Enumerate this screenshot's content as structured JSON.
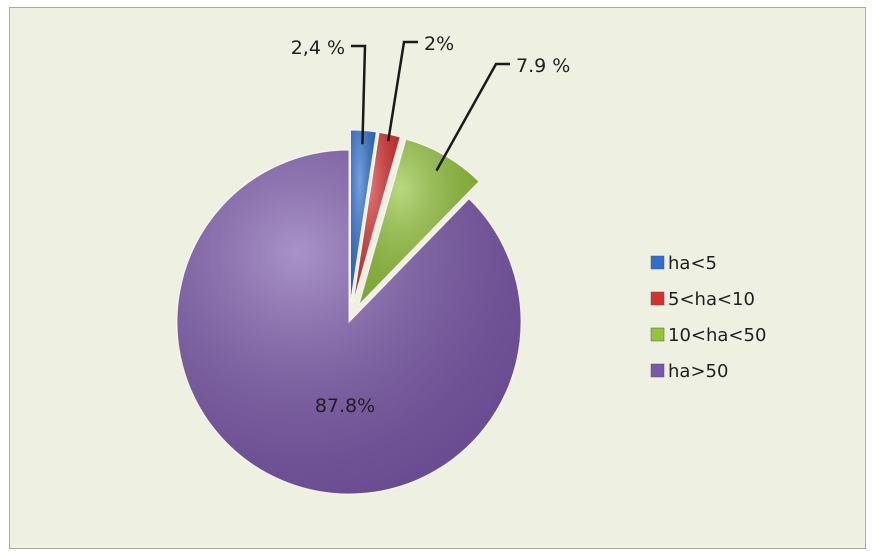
{
  "chart_data": {
    "type": "pie",
    "title": "",
    "categories": [
      "ha<5",
      "5<ha<10",
      "10<ha<50",
      "ha>50"
    ],
    "values": [
      2.4,
      2,
      7.9,
      87.8
    ],
    "data_labels": [
      "2,4 %",
      "2%",
      "7.9 %",
      "87.8%"
    ],
    "colors": [
      "#2e6fcf",
      "#d8302e",
      "#93c43a",
      "#7b57ab"
    ],
    "exploded": [
      true,
      true,
      true,
      false
    ],
    "legend": {
      "position": "right",
      "entries": [
        "ha<5",
        "5<ha<10",
        "10<ha<50",
        "ha>50"
      ]
    }
  }
}
